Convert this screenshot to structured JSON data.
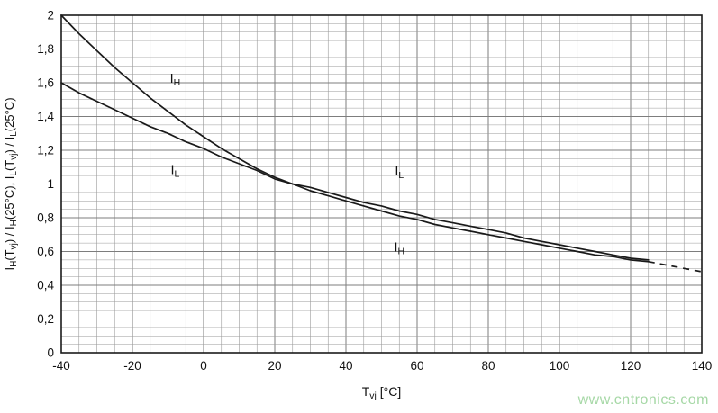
{
  "watermark": {
    "text": "www.cntronics.com",
    "color": "#a6d8a6"
  },
  "chart_data": {
    "type": "line",
    "title": "",
    "xlabel_segments": [
      {
        "t": "T"
      },
      {
        "t": "vj",
        "sub": true
      },
      {
        "t": " [°C]"
      }
    ],
    "ylabel_segments": [
      {
        "t": "I"
      },
      {
        "t": "H",
        "sub": true
      },
      {
        "t": "(T"
      },
      {
        "t": "vj",
        "sub": true
      },
      {
        "t": ") / I"
      },
      {
        "t": "H",
        "sub": true
      },
      {
        "t": "(25°C), I"
      },
      {
        "t": "L",
        "sub": true
      },
      {
        "t": "(T"
      },
      {
        "t": "vj",
        "sub": true
      },
      {
        "t": ") / I"
      },
      {
        "t": "L",
        "sub": true
      },
      {
        "t": "(25°C)"
      }
    ],
    "xlim": [
      -40,
      140
    ],
    "ylim": [
      0,
      2
    ],
    "x_major_step": 20,
    "y_major_step": 0.2,
    "x_minor_step": 5,
    "y_minor_step": 0.05,
    "grid": true,
    "legend_position": "none",
    "x_ticks": [
      {
        "v": -40,
        "t": "-40"
      },
      {
        "v": -20,
        "t": "-20"
      },
      {
        "v": 0,
        "t": "0"
      },
      {
        "v": 20,
        "t": "20"
      },
      {
        "v": 40,
        "t": "40"
      },
      {
        "v": 60,
        "t": "60"
      },
      {
        "v": 80,
        "t": "80"
      },
      {
        "v": 100,
        "t": "100"
      },
      {
        "v": 120,
        "t": "120"
      },
      {
        "v": 140,
        "t": "140"
      }
    ],
    "y_ticks": [
      {
        "v": 0,
        "t": "0"
      },
      {
        "v": 0.2,
        "t": "0,2"
      },
      {
        "v": 0.4,
        "t": "0,4"
      },
      {
        "v": 0.6,
        "t": "0,6"
      },
      {
        "v": 0.8,
        "t": "0,8"
      },
      {
        "v": 1,
        "t": "1"
      },
      {
        "v": 1.2,
        "t": "1,2"
      },
      {
        "v": 1.4,
        "t": "1,4"
      },
      {
        "v": 1.6,
        "t": "1,6"
      },
      {
        "v": 1.8,
        "t": "1,8"
      },
      {
        "v": 2,
        "t": "2"
      }
    ],
    "colors": {
      "curve": "#1a1a1a",
      "grid_minor": "#9a9a9a",
      "grid_major": "#7d7d7d",
      "frame": "#1a1a1a",
      "text": "#111111"
    },
    "series": [
      {
        "name": "IH",
        "points": [
          [
            -40,
            2.0
          ],
          [
            -35,
            1.89
          ],
          [
            -30,
            1.79
          ],
          [
            -25,
            1.69
          ],
          [
            -20,
            1.6
          ],
          [
            -15,
            1.51
          ],
          [
            -10,
            1.43
          ],
          [
            -5,
            1.35
          ],
          [
            0,
            1.28
          ],
          [
            5,
            1.21
          ],
          [
            10,
            1.15
          ],
          [
            15,
            1.09
          ],
          [
            20,
            1.04
          ],
          [
            25,
            1.0
          ],
          [
            30,
            0.96
          ],
          [
            35,
            0.93
          ],
          [
            40,
            0.9
          ],
          [
            45,
            0.87
          ],
          [
            50,
            0.84
          ],
          [
            55,
            0.81
          ],
          [
            60,
            0.79
          ],
          [
            65,
            0.76
          ],
          [
            70,
            0.74
          ],
          [
            75,
            0.72
          ],
          [
            80,
            0.7
          ],
          [
            85,
            0.68
          ],
          [
            90,
            0.66
          ],
          [
            95,
            0.64
          ],
          [
            100,
            0.62
          ],
          [
            105,
            0.6
          ],
          [
            110,
            0.58
          ],
          [
            115,
            0.57
          ],
          [
            120,
            0.55
          ],
          [
            125,
            0.54
          ]
        ],
        "dashed_tail": [
          [
            125,
            0.54
          ],
          [
            130,
            0.52
          ],
          [
            135,
            0.5
          ],
          [
            140,
            0.48
          ]
        ]
      },
      {
        "name": "IL",
        "points": [
          [
            -40,
            1.6
          ],
          [
            -35,
            1.54
          ],
          [
            -30,
            1.49
          ],
          [
            -25,
            1.44
          ],
          [
            -20,
            1.39
          ],
          [
            -15,
            1.34
          ],
          [
            -10,
            1.3
          ],
          [
            -5,
            1.25
          ],
          [
            0,
            1.21
          ],
          [
            5,
            1.16
          ],
          [
            10,
            1.12
          ],
          [
            15,
            1.08
          ],
          [
            20,
            1.03
          ],
          [
            25,
            1.0
          ],
          [
            30,
            0.98
          ],
          [
            35,
            0.95
          ],
          [
            40,
            0.92
          ],
          [
            45,
            0.89
          ],
          [
            50,
            0.87
          ],
          [
            55,
            0.84
          ],
          [
            60,
            0.82
          ],
          [
            65,
            0.79
          ],
          [
            70,
            0.77
          ],
          [
            75,
            0.75
          ],
          [
            80,
            0.73
          ],
          [
            85,
            0.71
          ],
          [
            90,
            0.68
          ],
          [
            95,
            0.66
          ],
          [
            100,
            0.64
          ],
          [
            105,
            0.62
          ],
          [
            110,
            0.6
          ],
          [
            115,
            0.58
          ],
          [
            120,
            0.56
          ],
          [
            125,
            0.55
          ]
        ],
        "dashed_tail": []
      }
    ],
    "annotations": [
      {
        "main": "I",
        "sub": "H",
        "x": -8,
        "y": 1.6
      },
      {
        "main": "I",
        "sub": "L",
        "x": -8,
        "y": 1.06
      },
      {
        "main": "I",
        "sub": "L",
        "x": 55,
        "y": 1.05
      },
      {
        "main": "I",
        "sub": "H",
        "x": 55,
        "y": 0.6
      }
    ]
  }
}
